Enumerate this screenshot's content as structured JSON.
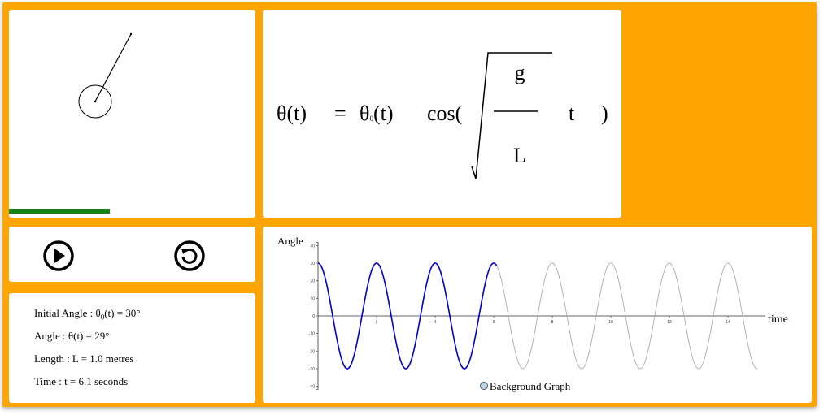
{
  "equation": {
    "lhs": "θ(t)",
    "equals": "=",
    "theta0": "θ",
    "theta0_sub": "0",
    "theta0_arg": "(t)",
    "cos_open": "cos(",
    "numerator": "g",
    "denominator": "L",
    "time_var": "t",
    "close": ")"
  },
  "simulation": {
    "angle_deg": 29,
    "progress_fraction": 0.41
  },
  "controls": {
    "play_icon": "play-icon",
    "reset_icon": "reset-icon"
  },
  "info": {
    "initial_angle_prefix": "Initial Angle : θ",
    "initial_angle_sub": "0",
    "initial_angle_suffix": "(t) = 30°",
    "angle": "Angle : θ(t) = 29°",
    "length": "Length : L = 1.0 metres",
    "time": "Time : t = 6.1 seconds"
  },
  "chart_data": {
    "type": "line",
    "xlabel": "time",
    "ylabel": "Angle",
    "xlim": [
      0,
      15
    ],
    "ylim": [
      -40,
      40
    ],
    "x_ticks": [
      2,
      4,
      6,
      8,
      10,
      12,
      14
    ],
    "y_ticks": [
      40,
      30,
      20,
      10,
      0,
      -10,
      -20,
      -30,
      -40
    ],
    "amplitude": 30,
    "period_s": 2.0,
    "current_time": 6.1,
    "series": [
      {
        "name": "",
        "color": "#0000cc",
        "x_range": [
          0,
          6.1
        ]
      },
      {
        "name": "Background Graph",
        "color": "#aaaaaa",
        "x_range": [
          0,
          15
        ]
      }
    ],
    "legend": {
      "label": "Background Graph",
      "position": "bottom-center"
    }
  },
  "colors": {
    "frame": "#ffa500",
    "progress": "#148514",
    "current_curve": "#0000cc",
    "background_curve": "#aaaaaa"
  }
}
